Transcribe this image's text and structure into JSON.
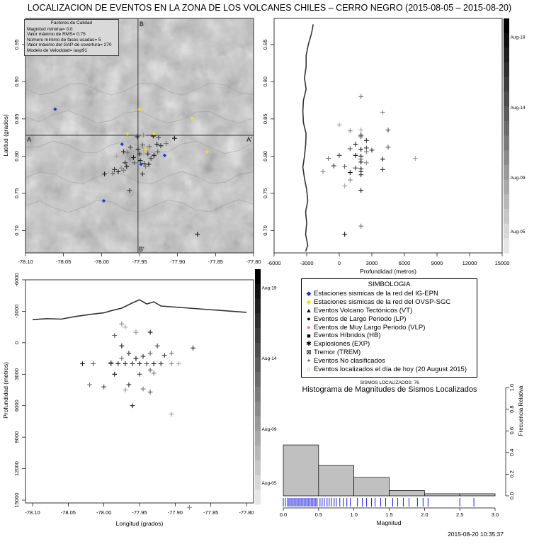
{
  "title": "LOCALIZACION DE EVENTOS EN LA ZONA DE LOS VOLCANES CHILES – CERRO NEGRO (2015-08-05 – 2015-08-20)",
  "timestamp": "2015-08-20 10:35:37",
  "quality": {
    "title": "Factores de Calidad",
    "lines": [
      "Magnitud mínima= 0.0",
      "Valor máximo de RMS= 0.75",
      "Número mínimo de fases usadas= 5",
      "Valor máximo del GAP de covertura= 270",
      "Modelo de Velocidad= iasp91"
    ]
  },
  "legend": {
    "title": "SIMBOLOGIA",
    "items": [
      {
        "symbol": "diamond",
        "color": "#1f35c9",
        "label": "Estaciones sismicas de la red del IG-EPN"
      },
      {
        "symbol": "diamond",
        "color": "#f0e21a",
        "label": "Estaciones sismicas de la red del OVSP-SGC"
      },
      {
        "symbol": "triangle",
        "color": "#000000",
        "label": "Eventos Volcano Tectónicos (VT)"
      },
      {
        "symbol": "circle",
        "color": "#000000",
        "label": "Eventos de Largo Periodo (LP)"
      },
      {
        "symbol": "circle",
        "color": "#e07a7a",
        "label": "Eventos de Muy Largo Periodo (VLP)"
      },
      {
        "symbol": "square",
        "color": "#000000",
        "label": "Eventos Híbridos (HB)"
      },
      {
        "symbol": "asterisk",
        "color": "#000000",
        "label": "Explosiones (EXP)"
      },
      {
        "symbol": "boxx",
        "color": "#000000",
        "label": "Tremor (TREM)"
      },
      {
        "symbol": "plus",
        "color": "#000000",
        "label": "Eventos No clasificados"
      },
      {
        "symbol": "ring",
        "color": "#22cc22",
        "label": "Eventos localizados el día de hoy (20 August 2015)"
      }
    ]
  },
  "histogram": {
    "count_label": "SISMOS LOCALIZADOS: 76",
    "title": "Histograma de Magnitudes de Sismos Localizados",
    "xlabel": "Magnitud",
    "ylabel": "Frecuencia Relativa"
  },
  "colorbar_labels": [
    "Aug-19",
    "Aug-14",
    "Aug-09",
    "Aug-05"
  ],
  "map": {
    "ylabel": "Latitud (grados)",
    "section_ew": [
      "A",
      "A'"
    ],
    "section_ns": [
      "B",
      "B'"
    ]
  },
  "chart_data": [
    {
      "type": "scatter",
      "name": "map-view",
      "xlim": [
        -78.1,
        -77.8
      ],
      "ylim": [
        0.67,
        0.985
      ],
      "xticks": [
        "-78.10",
        "-78.05",
        "-78.00",
        "-77.95",
        "-77.90",
        "-77.85",
        "-77.80"
      ],
      "yticks": [
        "0.70",
        "0.75",
        "0.80",
        "0.85",
        "0.90",
        "0.95"
      ],
      "section_lines": {
        "lat": 0.828,
        "lon": -77.952
      },
      "stations_ig_epn": [
        [
          -78.061,
          0.863
        ],
        [
          -77.973,
          0.816
        ],
        [
          -77.948,
          0.789
        ],
        [
          -77.917,
          0.801
        ],
        [
          -77.997,
          0.74
        ]
      ],
      "stations_ovsp_sgc": [
        [
          -77.95,
          0.863
        ],
        [
          -77.966,
          0.83
        ],
        [
          -77.942,
          0.809
        ],
        [
          -77.931,
          0.83
        ],
        [
          -77.881,
          0.851
        ],
        [
          -77.861,
          0.806
        ]
      ],
      "events": [
        [
          -77.953,
          0.826,
          0.9
        ],
        [
          -77.945,
          0.828,
          0.4
        ],
        [
          -77.932,
          0.827,
          0.9
        ],
        [
          -77.925,
          0.825,
          0.7
        ],
        [
          -77.904,
          0.824,
          0.9
        ],
        [
          -77.922,
          0.814,
          0.8
        ],
        [
          -77.937,
          0.813,
          0.5
        ],
        [
          -77.946,
          0.815,
          0.6
        ],
        [
          -77.962,
          0.812,
          0.7
        ],
        [
          -77.971,
          0.806,
          0.8
        ],
        [
          -77.966,
          0.805,
          0.5
        ],
        [
          -77.95,
          0.803,
          0.9
        ],
        [
          -77.939,
          0.803,
          0.8
        ],
        [
          -77.931,
          0.801,
          0.9
        ],
        [
          -77.926,
          0.806,
          0.6
        ],
        [
          -77.935,
          0.797,
          0.7
        ],
        [
          -77.949,
          0.794,
          0.9
        ],
        [
          -77.957,
          0.791,
          0.6
        ],
        [
          -77.969,
          0.791,
          0.8
        ],
        [
          -77.967,
          0.786,
          0.9
        ],
        [
          -77.974,
          0.784,
          0.4
        ],
        [
          -77.983,
          0.782,
          0.8
        ],
        [
          -77.978,
          0.779,
          0.9
        ],
        [
          -77.971,
          0.781,
          0.5
        ],
        [
          -77.996,
          0.776,
          0.9
        ],
        [
          -77.944,
          0.79,
          0.8
        ],
        [
          -77.938,
          0.789,
          0.9
        ],
        [
          -77.942,
          0.786,
          0.5
        ],
        [
          -77.958,
          0.798,
          0.9
        ],
        [
          -77.962,
          0.796,
          0.4
        ],
        [
          -77.98,
          0.8,
          0.3
        ],
        [
          -77.952,
          0.809,
          0.9
        ],
        [
          -77.927,
          0.816,
          0.9
        ],
        [
          -77.915,
          0.817,
          0.5
        ],
        [
          -77.963,
          0.754,
          0.8
        ],
        [
          -77.874,
          0.695,
          0.9
        ],
        [
          -77.985,
          0.777,
          0.6
        ],
        [
          -77.946,
          0.776,
          0.8
        ]
      ],
      "relief_contours": [
        0.3,
        0.42,
        0.55,
        0.68,
        0.8
      ]
    },
    {
      "type": "scatter",
      "name": "latitude-depth-section",
      "xlabel": "Profundidad (metros)",
      "xlim": [
        -6000,
        15000
      ],
      "ylim": [
        0.67,
        0.985
      ],
      "xticks": [
        "-6000",
        "-3000",
        "0",
        "3000",
        "6000",
        "9000",
        "12000",
        "15000"
      ],
      "yticks": [
        "0.70",
        "0.75",
        "0.80",
        "0.85",
        "0.90",
        "0.95"
      ],
      "topography": [
        [
          -2400,
          0.977
        ],
        [
          -2550,
          0.965
        ],
        [
          -2850,
          0.95
        ],
        [
          -3050,
          0.935
        ],
        [
          -3050,
          0.92
        ],
        [
          -3200,
          0.905
        ],
        [
          -3050,
          0.89
        ],
        [
          -3300,
          0.875
        ],
        [
          -3350,
          0.86
        ],
        [
          -3300,
          0.845
        ],
        [
          -3050,
          0.83
        ],
        [
          -3100,
          0.815
        ],
        [
          -3200,
          0.8
        ],
        [
          -3350,
          0.785
        ],
        [
          -3200,
          0.77
        ],
        [
          -3000,
          0.755
        ],
        [
          -2900,
          0.74
        ],
        [
          -3100,
          0.725
        ],
        [
          -3000,
          0.71
        ],
        [
          -3100,
          0.695
        ],
        [
          -2900,
          0.68
        ],
        [
          -3100,
          0.672
        ]
      ],
      "events": [
        [
          2000,
          0.88,
          0.5
        ],
        [
          4000,
          0.859,
          0.4
        ],
        [
          0,
          0.842,
          0.3
        ],
        [
          4500,
          0.835,
          0.7
        ],
        [
          1000,
          0.834,
          0.4
        ],
        [
          2000,
          0.835,
          0.3
        ],
        [
          2000,
          0.828,
          0.9
        ],
        [
          2000,
          0.826,
          0.6
        ],
        [
          2500,
          0.821,
          0.8
        ],
        [
          1500,
          0.816,
          0.9
        ],
        [
          2500,
          0.811,
          0.7
        ],
        [
          1000,
          0.81,
          0.6
        ],
        [
          2000,
          0.809,
          0.9
        ],
        [
          2500,
          0.806,
          0.5
        ],
        [
          3000,
          0.808,
          0.8
        ],
        [
          4500,
          0.812,
          0.6
        ],
        [
          1500,
          0.801,
          0.9
        ],
        [
          0,
          0.801,
          0.7
        ],
        [
          -1000,
          0.797,
          0.5
        ],
        [
          2000,
          0.8,
          0.9
        ],
        [
          2000,
          0.796,
          0.6
        ],
        [
          4000,
          0.796,
          0.9
        ],
        [
          2000,
          0.792,
          0.9
        ],
        [
          2500,
          0.791,
          0.4
        ],
        [
          -500,
          0.787,
          0.8
        ],
        [
          500,
          0.786,
          0.6
        ],
        [
          1500,
          0.784,
          0.7
        ],
        [
          2000,
          0.783,
          0.9
        ],
        [
          2000,
          0.779,
          0.8
        ],
        [
          -1500,
          0.779,
          0.4
        ],
        [
          1000,
          0.778,
          0.9
        ],
        [
          4000,
          0.782,
          0.8
        ],
        [
          2000,
          0.775,
          0.8
        ],
        [
          7000,
          0.797,
          0.3
        ],
        [
          1000,
          0.768,
          0.4
        ],
        [
          500,
          0.76,
          0.3
        ],
        [
          2000,
          0.754,
          0.9
        ],
        [
          2000,
          0.706,
          0.5
        ],
        [
          500,
          0.695,
          0.9
        ]
      ]
    },
    {
      "type": "scatter",
      "name": "longitude-depth-section",
      "xlabel": "Longitud (grados)",
      "ylabel": "Profundidad (metros)",
      "xlim": [
        -78.1,
        -77.8
      ],
      "ylim": [
        -6000,
        15000
      ],
      "xticks": [
        "-78.10",
        "-78.05",
        "-78.00",
        "-77.95",
        "-77.90",
        "-77.85",
        "-77.80"
      ],
      "yticks": [
        "-6000",
        "-3000",
        "0",
        "3000",
        "6000",
        "9000",
        "12000",
        "15000"
      ],
      "topography": [
        [
          -78.1,
          -2200
        ],
        [
          -78.08,
          -2300
        ],
        [
          -78.06,
          -2250
        ],
        [
          -78.04,
          -2500
        ],
        [
          -78.02,
          -2700
        ],
        [
          -78.0,
          -2850
        ],
        [
          -77.99,
          -3050
        ],
        [
          -77.975,
          -3300
        ],
        [
          -77.96,
          -3800
        ],
        [
          -77.95,
          -4100
        ],
        [
          -77.94,
          -3700
        ],
        [
          -77.93,
          -3900
        ],
        [
          -77.92,
          -3500
        ],
        [
          -77.9,
          -3400
        ],
        [
          -77.88,
          -3300
        ],
        [
          -77.86,
          -3200
        ],
        [
          -77.84,
          -3100
        ],
        [
          -77.82,
          -3000
        ],
        [
          -77.8,
          -2900
        ]
      ],
      "events": [
        [
          -77.975,
          -1800,
          0.4
        ],
        [
          -77.97,
          -1500,
          0.3
        ],
        [
          -77.985,
          -700,
          0.6
        ],
        [
          -77.955,
          -1000,
          0.4
        ],
        [
          -77.935,
          -1000,
          0.9
        ],
        [
          -77.975,
          300,
          0.9
        ],
        [
          -77.925,
          300,
          0.7
        ],
        [
          -77.965,
          1000,
          0.8
        ],
        [
          -77.945,
          1300,
          0.8
        ],
        [
          -77.935,
          1000,
          0.6
        ],
        [
          -77.915,
          1200,
          0.8
        ],
        [
          -77.905,
          1000,
          0.5
        ],
        [
          -77.875,
          500,
          0.9
        ],
        [
          -77.975,
          1500,
          0.5
        ],
        [
          -77.955,
          1500,
          0.9
        ],
        [
          -77.99,
          1900,
          0.8
        ],
        [
          -78.03,
          2000,
          0.9
        ],
        [
          -78.015,
          2000,
          0.6
        ],
        [
          -77.99,
          2000,
          0.8
        ],
        [
          -77.98,
          2000,
          0.9
        ],
        [
          -77.97,
          2000,
          0.9
        ],
        [
          -77.96,
          2000,
          0.8
        ],
        [
          -77.95,
          2000,
          0.9
        ],
        [
          -77.94,
          2000,
          0.7
        ],
        [
          -77.93,
          2000,
          0.9
        ],
        [
          -77.92,
          2000,
          0.8
        ],
        [
          -77.905,
          2000,
          0.4
        ],
        [
          -77.895,
          2000,
          0.3
        ],
        [
          -77.935,
          2600,
          0.6
        ],
        [
          -77.985,
          3000,
          0.9
        ],
        [
          -77.95,
          3000,
          0.7
        ],
        [
          -77.93,
          2900,
          0.5
        ],
        [
          -78.02,
          4000,
          0.5
        ],
        [
          -78.0,
          4200,
          0.7
        ],
        [
          -77.965,
          4000,
          0.8
        ],
        [
          -77.97,
          4500,
          0.4
        ],
        [
          -77.945,
          4400,
          0.5
        ],
        [
          -77.935,
          4700,
          0.6
        ],
        [
          -77.96,
          6000,
          0.9
        ],
        [
          -77.905,
          6800,
          0.3
        ],
        [
          -77.88,
          15700,
          0.4
        ]
      ]
    },
    {
      "type": "bar",
      "name": "magnitude-histogram",
      "xlabel": "Magnitud",
      "ylabel": "Frecuencia Relativa",
      "xlim": [
        0,
        3.0
      ],
      "ylim": [
        0,
        1.0
      ],
      "xticks": [
        "0.0",
        "0.5",
        "1.0",
        "1.5",
        "2.0",
        "2.5",
        "3.0"
      ],
      "yticks": [
        "0.0",
        "0.2",
        "0.4",
        "0.6",
        "0.8",
        "1.0"
      ],
      "bins": [
        [
          0.0,
          0.5
        ],
        [
          0.5,
          1.0
        ],
        [
          1.0,
          1.5
        ],
        [
          1.5,
          2.0
        ],
        [
          2.0,
          2.5
        ],
        [
          2.5,
          3.0
        ]
      ],
      "values": [
        0.47,
        0.28,
        0.17,
        0.05,
        0.02,
        0.02
      ],
      "rug": [
        0.0,
        0.03,
        0.06,
        0.08,
        0.1,
        0.12,
        0.14,
        0.16,
        0.18,
        0.2,
        0.22,
        0.24,
        0.26,
        0.28,
        0.3,
        0.32,
        0.34,
        0.36,
        0.38,
        0.4,
        0.42,
        0.44,
        0.46,
        0.48,
        0.52,
        0.55,
        0.58,
        0.62,
        0.65,
        0.68,
        0.72,
        0.75,
        0.8,
        0.85,
        0.9,
        0.95,
        1.05,
        1.12,
        1.18,
        1.25,
        1.3,
        1.38,
        1.45,
        1.55,
        1.62,
        1.7,
        1.78,
        1.9,
        1.98,
        2.05,
        2.5,
        2.7
      ]
    }
  ]
}
